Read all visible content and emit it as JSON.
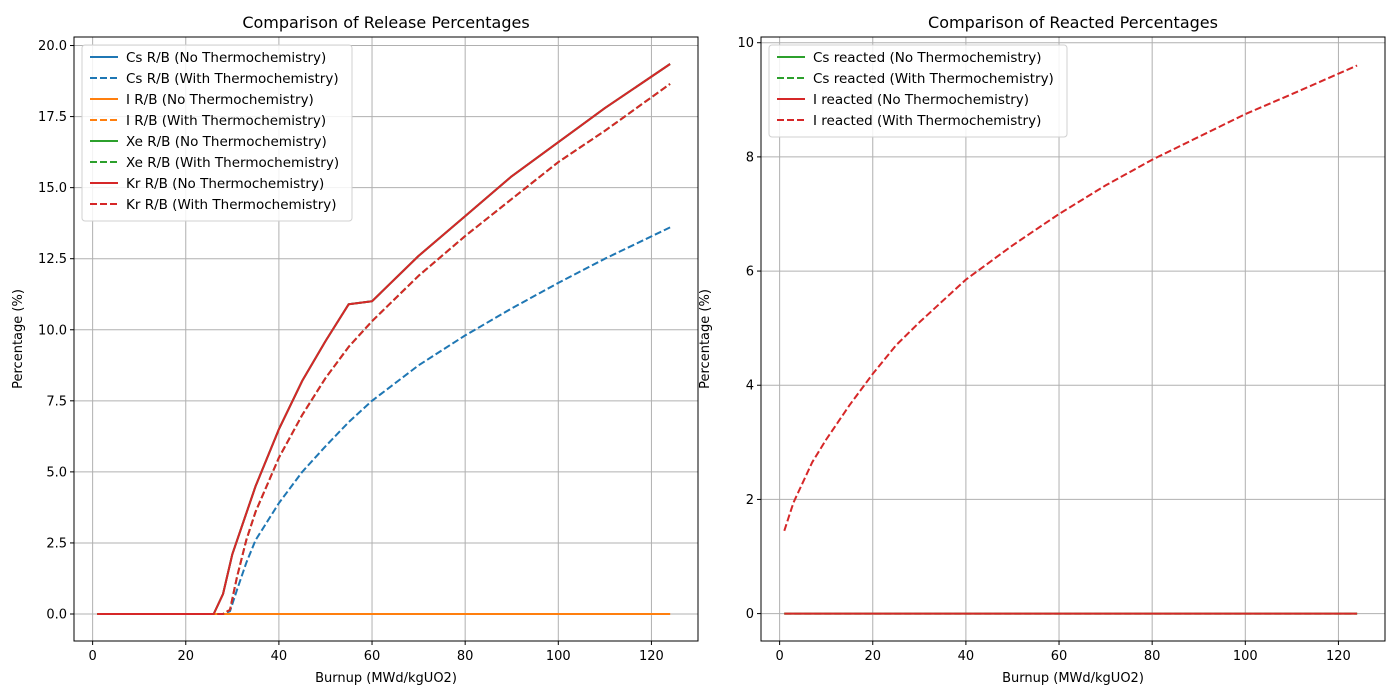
{
  "chart_data": [
    {
      "type": "line",
      "title": "Comparison of Release Percentages",
      "xlabel": "Burnup (MWd/kgUO2)",
      "ylabel": "Percentage (%)",
      "xlim": [
        -4,
        130
      ],
      "ylim": [
        -0.95,
        20.3
      ],
      "xticks": [
        0,
        20,
        40,
        60,
        80,
        100,
        120
      ],
      "yticks": [
        0.0,
        2.5,
        5.0,
        7.5,
        10.0,
        12.5,
        15.0,
        17.5,
        20.0
      ],
      "ytick_decimals": 1,
      "grid": true,
      "legend_position": "top-left",
      "series": [
        {
          "name": "Cs R/B (No Thermochemistry)",
          "color": "#1f77b4",
          "dash": "solid",
          "x": [
            1,
            26,
            28,
            30,
            35,
            40,
            45,
            50,
            55,
            60,
            70,
            80,
            90,
            100,
            110,
            124
          ],
          "y": [
            0,
            0,
            0.7,
            2.1,
            4.5,
            6.5,
            8.2,
            9.6,
            10.9,
            11.0,
            12.6,
            14.0,
            15.4,
            16.6,
            17.8,
            19.35
          ]
        },
        {
          "name": "Cs R/B (With Thermochemistry)",
          "color": "#1f77b4",
          "dash": "dashed",
          "x": [
            1,
            28,
            29.5,
            31,
            33,
            35,
            40,
            45,
            50,
            55,
            60,
            70,
            80,
            90,
            100,
            110,
            124
          ],
          "y": [
            0,
            0,
            0.1,
            0.85,
            1.8,
            2.6,
            3.9,
            5.0,
            5.9,
            6.75,
            7.5,
            8.75,
            9.8,
            10.75,
            11.65,
            12.5,
            13.6
          ]
        },
        {
          "name": "I R/B (No Thermochemistry)",
          "color": "#ff7f0e",
          "dash": "solid",
          "x": [
            1,
            124
          ],
          "y": [
            0,
            0
          ]
        },
        {
          "name": "I R/B (With Thermochemistry)",
          "color": "#ff7f0e",
          "dash": "dashed",
          "x": [
            1,
            124
          ],
          "y": [
            0,
            0
          ]
        },
        {
          "name": "Xe R/B (No Thermochemistry)",
          "color": "#2ca02c",
          "dash": "solid",
          "x": [
            1,
            26,
            28,
            30,
            35,
            40,
            45,
            50,
            55,
            60,
            70,
            80,
            90,
            100,
            110,
            124
          ],
          "y": [
            0,
            0,
            0.7,
            2.1,
            4.5,
            6.5,
            8.2,
            9.6,
            10.9,
            11.0,
            12.6,
            14.0,
            15.4,
            16.6,
            17.8,
            19.35
          ]
        },
        {
          "name": "Xe R/B (With Thermochemistry)",
          "color": "#2ca02c",
          "dash": "dashed",
          "x": [
            1,
            28,
            29.5,
            31,
            33,
            35,
            40,
            45,
            50,
            55,
            60,
            70,
            80,
            90,
            100,
            110,
            124
          ],
          "y": [
            0,
            0,
            0.15,
            1.3,
            2.6,
            3.6,
            5.5,
            7.0,
            8.3,
            9.4,
            10.3,
            11.9,
            13.3,
            14.6,
            15.9,
            17.0,
            18.65
          ]
        },
        {
          "name": "Kr R/B (No Thermochemistry)",
          "color": "#d62728",
          "dash": "solid",
          "x": [
            1,
            26,
            28,
            30,
            35,
            40,
            45,
            50,
            55,
            60,
            70,
            80,
            90,
            100,
            110,
            124
          ],
          "y": [
            0,
            0,
            0.7,
            2.1,
            4.5,
            6.5,
            8.2,
            9.6,
            10.9,
            11.0,
            12.6,
            14.0,
            15.4,
            16.6,
            17.8,
            19.35
          ]
        },
        {
          "name": "Kr R/B (With Thermochemistry)",
          "color": "#d62728",
          "dash": "dashed",
          "x": [
            1,
            28,
            29.5,
            31,
            33,
            35,
            40,
            45,
            50,
            55,
            60,
            70,
            80,
            90,
            100,
            110,
            124
          ],
          "y": [
            0,
            0,
            0.15,
            1.3,
            2.6,
            3.6,
            5.5,
            7.0,
            8.3,
            9.4,
            10.3,
            11.9,
            13.3,
            14.6,
            15.9,
            17.0,
            18.65
          ]
        }
      ]
    },
    {
      "type": "line",
      "title": "Comparison of Reacted Percentages",
      "xlabel": "Burnup (MWd/kgUO2)",
      "ylabel": "Percentage (%)",
      "xlim": [
        -4,
        130
      ],
      "ylim": [
        -0.48,
        10.1
      ],
      "xticks": [
        0,
        20,
        40,
        60,
        80,
        100,
        120
      ],
      "yticks": [
        0,
        2,
        4,
        6,
        8,
        10
      ],
      "ytick_decimals": 0,
      "grid": true,
      "legend_position": "top-left",
      "series": [
        {
          "name": "Cs reacted (No Thermochemistry)",
          "color": "#2ca02c",
          "dash": "solid",
          "x": [
            1,
            124
          ],
          "y": [
            0,
            0
          ]
        },
        {
          "name": "Cs reacted (With Thermochemistry)",
          "color": "#2ca02c",
          "dash": "dashed",
          "x": [
            1,
            124
          ],
          "y": [
            0,
            0
          ]
        },
        {
          "name": "I reacted (No Thermochemistry)",
          "color": "#d62728",
          "dash": "solid",
          "x": [
            1,
            124
          ],
          "y": [
            0,
            0
          ]
        },
        {
          "name": "I reacted (With Thermochemistry)",
          "color": "#d62728",
          "dash": "dashed",
          "x": [
            1,
            2,
            3,
            5,
            7,
            10,
            15,
            20,
            25,
            30,
            40,
            50,
            60,
            70,
            80,
            90,
            100,
            110,
            124
          ],
          "y": [
            1.45,
            1.7,
            1.95,
            2.3,
            2.65,
            3.05,
            3.65,
            4.2,
            4.7,
            5.1,
            5.85,
            6.45,
            7.0,
            7.5,
            7.95,
            8.35,
            8.75,
            9.1,
            9.6
          ]
        }
      ]
    }
  ]
}
